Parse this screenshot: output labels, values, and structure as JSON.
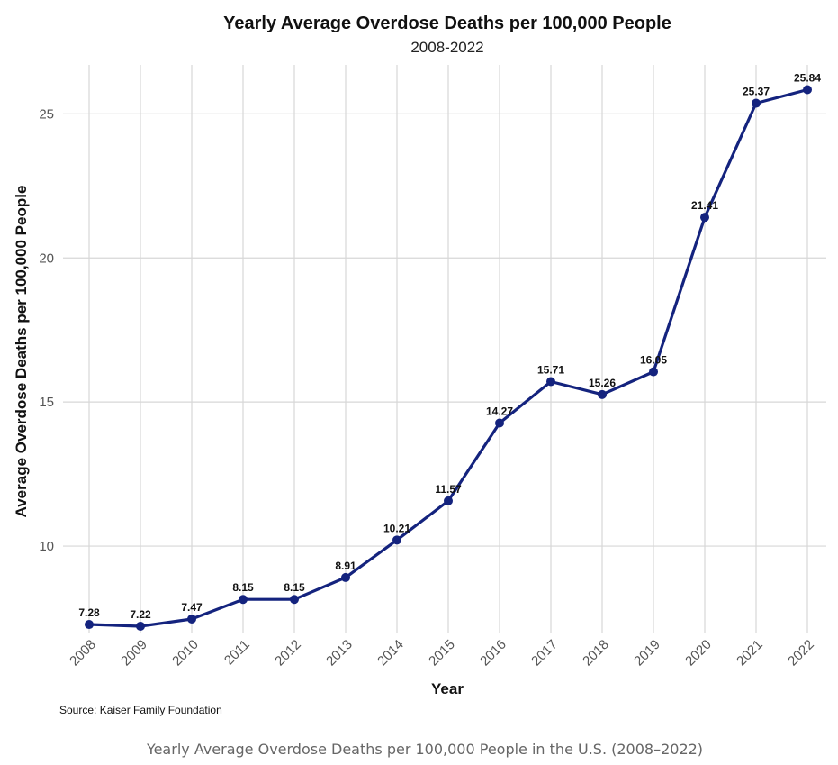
{
  "chart_data": {
    "type": "line",
    "title": "Yearly Average Overdose Deaths per 100,000 People",
    "subtitle": "2008-2022",
    "xlabel": "Year",
    "ylabel": "Average Overdose Deaths per 100,000 People",
    "x": [
      "2008",
      "2009",
      "2010",
      "2011",
      "2012",
      "2013",
      "2014",
      "2015",
      "2016",
      "2017",
      "2018",
      "2019",
      "2020",
      "2021",
      "2022"
    ],
    "series": [
      {
        "values": [
          7.28,
          7.22,
          7.47,
          8.15,
          8.15,
          8.91,
          10.21,
          11.57,
          14.27,
          15.71,
          15.26,
          16.05,
          21.41,
          25.37,
          25.84
        ],
        "labels": [
          "7.28",
          "7.22",
          "7.47",
          "8.15",
          "8.15",
          "8.91",
          "10.21",
          "11.57",
          "14.27",
          "15.71",
          "15.26",
          "16.05",
          "21.41",
          "25.37",
          "25.84"
        ]
      }
    ],
    "yticks": [
      "10",
      "15",
      "20",
      "25"
    ],
    "ytick_values": [
      10,
      15,
      20,
      25
    ],
    "ylim": [
      7.0,
      26.7
    ],
    "grid": true,
    "legend": "none",
    "line_color": "#14237e",
    "source": "Source: Kaiser Family Foundation"
  },
  "caption": "Yearly Average Overdose Deaths per 100,000 People in the U.S. (2008–2022)"
}
